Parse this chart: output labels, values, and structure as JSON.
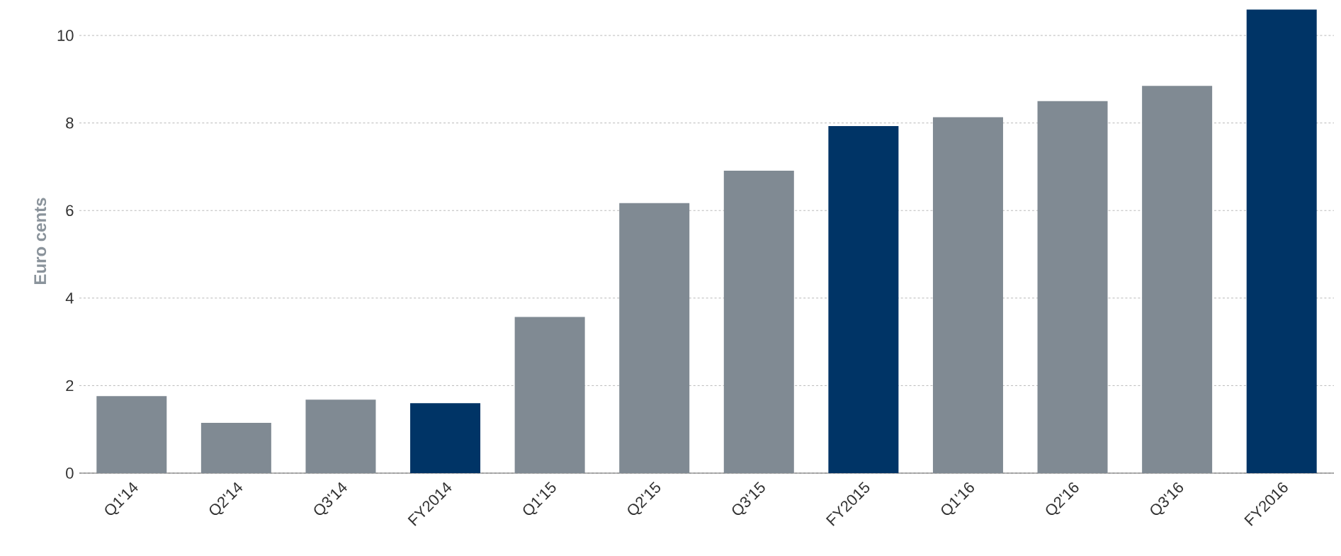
{
  "chart_data": {
    "type": "bar",
    "ylabel": "Euro cents",
    "categories": [
      "Q1'14",
      "Q2'14",
      "Q3'14",
      "FY2014",
      "Q1'15",
      "Q2'15",
      "Q3'15",
      "FY2015",
      "Q1'16",
      "Q2'16",
      "Q3'16",
      "FY2016"
    ],
    "values": [
      1.76,
      1.15,
      1.68,
      1.6,
      3.57,
      6.17,
      6.91,
      7.93,
      8.13,
      8.5,
      8.85,
      10.59
    ],
    "colors": [
      "#808a93",
      "#808a93",
      "#808a93",
      "#003466",
      "#808a93",
      "#808a93",
      "#808a93",
      "#003466",
      "#808a93",
      "#808a93",
      "#808a93",
      "#003466"
    ],
    "ylim": [
      0,
      10.6
    ],
    "yticks": [
      0,
      2,
      4,
      6,
      8,
      10
    ],
    "grid": "y"
  }
}
